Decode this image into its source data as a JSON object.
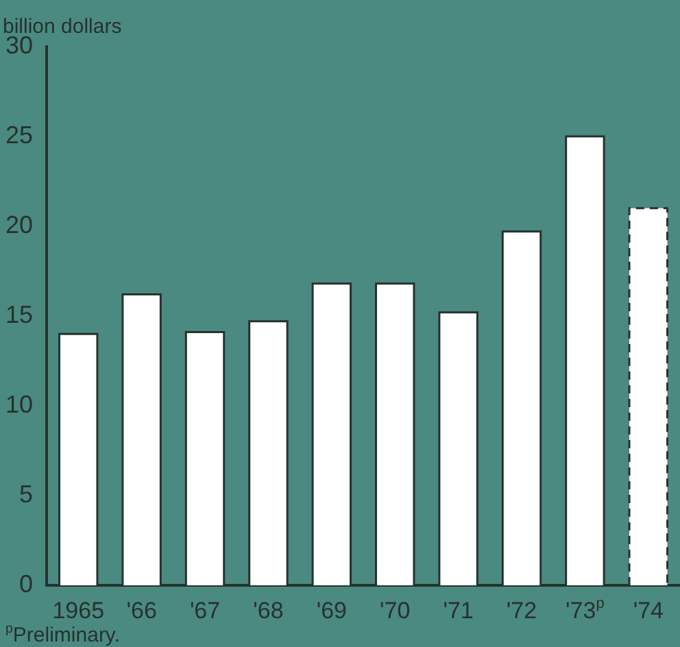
{
  "chart_data": {
    "type": "bar",
    "ylabel": "billion dollars",
    "categories": [
      "1965",
      "'66",
      "'67",
      "'68",
      "'69",
      "'70",
      "'71",
      "'72",
      "'73$^{p}$",
      "'74"
    ],
    "series": [
      {
        "color": "#ffffff",
        "values": [
          14.0,
          16.2,
          14.1,
          14.7,
          16.8,
          16.8,
          15.2,
          19.7,
          25.0,
          null
        ]
      },
      {
        "color": "#ffffff",
        "line_style": "dashed",
        "values": [
          null,
          null,
          null,
          null,
          null,
          null,
          null,
          null,
          null,
          21.0
        ]
      }
    ],
    "ylim": [
      0,
      30
    ],
    "yticks": [
      0,
      5,
      10,
      15,
      20,
      25,
      30
    ],
    "grid": false,
    "legend": false,
    "annotations": [
      "$^{p}$Preliminary."
    ]
  }
}
